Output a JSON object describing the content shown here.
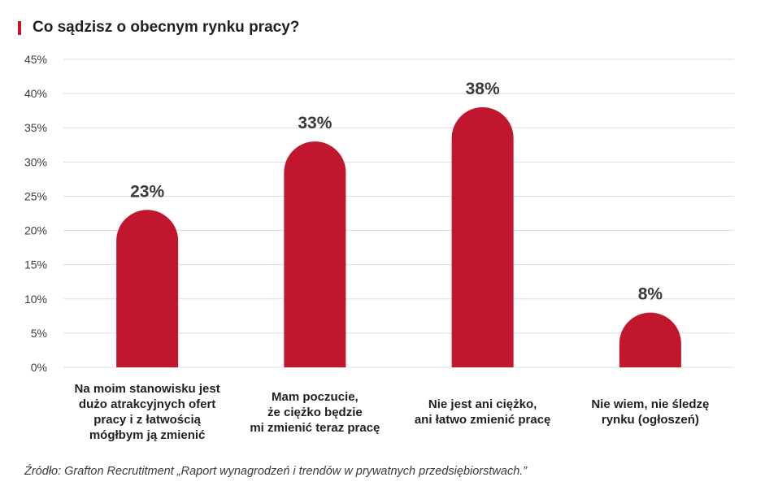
{
  "title": "Co sądzisz o obecnym rynku pracy?",
  "source": "Źródło: Grafton Recrutitment „Raport wynagrodzeń i trendów w prywatnych przedsiębiorstwach.”",
  "colors": {
    "bar": "#c0172e",
    "accent": "#c0172e",
    "grid": "#dddddd"
  },
  "chart_data": {
    "type": "bar",
    "title": "Co sądzisz o obecnym rynku pracy?",
    "xlabel": "",
    "ylabel": "",
    "ylim": [
      0,
      45
    ],
    "yticks": [
      "0%",
      "5%",
      "10%",
      "15%",
      "20%",
      "25%",
      "30%",
      "35%",
      "40%",
      "45%"
    ],
    "grid": true,
    "categories": [
      [
        "Na moim stanowisku jest",
        "dużo atrakcyjnych ofert",
        "pracy i z łatwością",
        "mógłbym ją zmienić"
      ],
      [
        "Mam poczucie,",
        "że ciężko będzie",
        "mi zmienić teraz pracę"
      ],
      [
        "Nie jest ani ciężko,",
        "ani łatwo zmienić pracę"
      ],
      [
        "Nie wiem, nie śledzę",
        "rynku (ogłoszeń)"
      ]
    ],
    "values": [
      23,
      33,
      38,
      8
    ],
    "data_labels": [
      "23%",
      "33%",
      "38%",
      "8%"
    ]
  }
}
